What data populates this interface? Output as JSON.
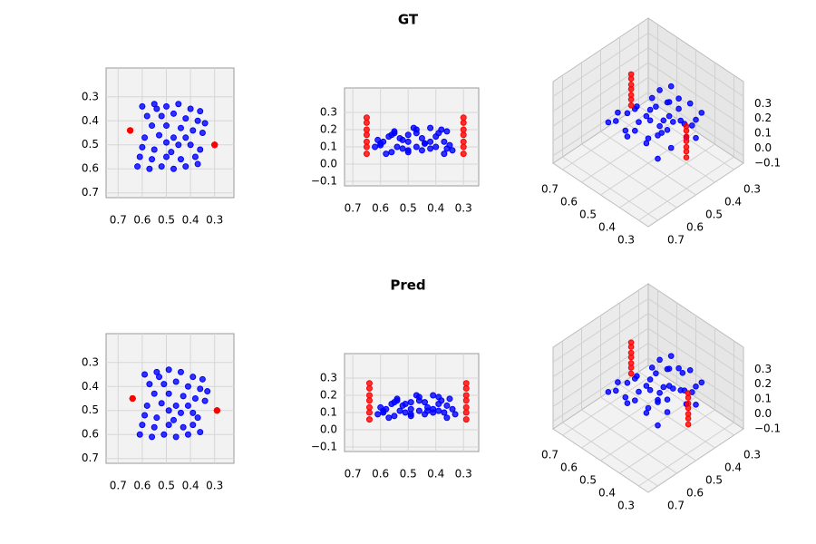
{
  "chart_data": [
    {
      "type": "scatter3d",
      "title": "GT",
      "xticks": [
        0.7,
        0.6,
        0.5,
        0.4,
        0.3
      ],
      "yticks": [
        0.3,
        0.4,
        0.5,
        0.6,
        0.7
      ],
      "zticks": [
        {
          "value": -0.1,
          "label": "−0.1"
        },
        {
          "value": 0,
          "label": "0.0"
        },
        0.1,
        0.2,
        0.3
      ],
      "views": [
        {
          "type": "top",
          "xlim": [
            0.75,
            0.22
          ],
          "ylim": [
            0.18,
            0.72
          ]
        },
        {
          "type": "front",
          "xlim": [
            0.73,
            0.245
          ],
          "zlim": [
            -0.126,
            0.442
          ]
        },
        {
          "type": "iso",
          "xlim": [
            0.25,
            0.75
          ],
          "ylim": [
            0.25,
            0.75
          ],
          "zlim": [
            -0.15,
            0.4
          ]
        }
      ],
      "series": [
        {
          "color": "#0000ff",
          "x": [
            0.6,
            0.55,
            0.5,
            0.45,
            0.4,
            0.36,
            0.58,
            0.52,
            0.47,
            0.42,
            0.37,
            0.56,
            0.5,
            0.44,
            0.39,
            0.35,
            0.53,
            0.47,
            0.42,
            0.5,
            0.45,
            0.4,
            0.6,
            0.55,
            0.36,
            0.61,
            0.56,
            0.5,
            0.44,
            0.38,
            0.62,
            0.57,
            0.52,
            0.47,
            0.42,
            0.37,
            0.59,
            0.34,
            0.48,
            0.54
          ],
          "y": [
            0.34,
            0.33,
            0.34,
            0.33,
            0.35,
            0.36,
            0.38,
            0.38,
            0.37,
            0.39,
            0.4,
            0.42,
            0.42,
            0.43,
            0.44,
            0.45,
            0.46,
            0.47,
            0.47,
            0.49,
            0.5,
            0.5,
            0.51,
            0.52,
            0.52,
            0.55,
            0.56,
            0.55,
            0.56,
            0.55,
            0.59,
            0.6,
            0.59,
            0.6,
            0.59,
            0.58,
            0.47,
            0.41,
            0.53,
            0.35
          ],
          "z": [
            0.12,
            0.18,
            0.08,
            0.15,
            0.1,
            0.19,
            0.06,
            0.14,
            0.2,
            0.09,
            0.13,
            0.17,
            0.07,
            0.12,
            0.18,
            0.11,
            0.15,
            0.1,
            0.21,
            0.13,
            0.08,
            0.16,
            0.11,
            0.19,
            0.09,
            0.14,
            0.07,
            0.17,
            0.12,
            0.2,
            0.1,
            0.16,
            0.09,
            0.18,
            0.13,
            0.06,
            0.13,
            0.08,
            0.21,
            0.1
          ]
        },
        {
          "color": "#ff0000",
          "x": [
            0.65,
            0.65,
            0.65,
            0.65,
            0.65,
            0.65,
            0.65,
            0.3,
            0.3,
            0.3,
            0.3,
            0.3,
            0.3,
            0.3
          ],
          "y": [
            0.44,
            0.44,
            0.44,
            0.44,
            0.44,
            0.44,
            0.44,
            0.5,
            0.5,
            0.5,
            0.5,
            0.5,
            0.5,
            0.5
          ],
          "z": [
            0.06,
            0.1,
            0.13,
            0.17,
            0.2,
            0.24,
            0.27,
            0.06,
            0.1,
            0.13,
            0.17,
            0.2,
            0.24,
            0.27
          ]
        }
      ]
    },
    {
      "type": "scatter3d",
      "title": "Pred",
      "xticks": [
        0.7,
        0.6,
        0.5,
        0.4,
        0.3
      ],
      "yticks": [
        0.3,
        0.4,
        0.5,
        0.6,
        0.7
      ],
      "zticks": [
        {
          "value": -0.1,
          "label": "−0.1"
        },
        {
          "value": 0,
          "label": "0.0"
        },
        0.1,
        0.2,
        0.3
      ],
      "views": [
        {
          "type": "top",
          "xlim": [
            0.75,
            0.22
          ],
          "ylim": [
            0.18,
            0.72
          ]
        },
        {
          "type": "front",
          "xlim": [
            0.73,
            0.245
          ],
          "zlim": [
            -0.126,
            0.442
          ]
        },
        {
          "type": "iso",
          "xlim": [
            0.25,
            0.75
          ],
          "ylim": [
            0.25,
            0.75
          ],
          "zlim": [
            -0.15,
            0.4
          ]
        }
      ],
      "series": [
        {
          "color": "#0000ff",
          "x": [
            0.59,
            0.54,
            0.49,
            0.44,
            0.39,
            0.35,
            0.57,
            0.51,
            0.46,
            0.41,
            0.36,
            0.55,
            0.49,
            0.43,
            0.38,
            0.34,
            0.52,
            0.46,
            0.41,
            0.49,
            0.44,
            0.39,
            0.59,
            0.54,
            0.37,
            0.6,
            0.55,
            0.49,
            0.43,
            0.39,
            0.61,
            0.56,
            0.51,
            0.46,
            0.41,
            0.36,
            0.58,
            0.33,
            0.47,
            0.53
          ],
          "y": [
            0.35,
            0.34,
            0.33,
            0.34,
            0.36,
            0.37,
            0.39,
            0.39,
            0.38,
            0.4,
            0.41,
            0.43,
            0.43,
            0.44,
            0.45,
            0.46,
            0.47,
            0.48,
            0.48,
            0.5,
            0.51,
            0.51,
            0.52,
            0.53,
            0.53,
            0.56,
            0.57,
            0.56,
            0.57,
            0.56,
            0.6,
            0.61,
            0.6,
            0.61,
            0.6,
            0.59,
            0.48,
            0.42,
            0.54,
            0.36
          ],
          "z": [
            0.11,
            0.17,
            0.09,
            0.16,
            0.11,
            0.18,
            0.07,
            0.15,
            0.19,
            0.1,
            0.14,
            0.16,
            0.08,
            0.13,
            0.17,
            0.12,
            0.14,
            0.11,
            0.2,
            0.12,
            0.09,
            0.15,
            0.1,
            0.18,
            0.1,
            0.13,
            0.08,
            0.16,
            0.11,
            0.19,
            0.09,
            0.15,
            0.1,
            0.17,
            0.12,
            0.07,
            0.12,
            0.09,
            0.2,
            0.11
          ]
        },
        {
          "color": "#ff0000",
          "x": [
            0.64,
            0.64,
            0.64,
            0.64,
            0.64,
            0.64,
            0.64,
            0.29,
            0.29,
            0.29,
            0.29,
            0.29,
            0.29,
            0.29
          ],
          "y": [
            0.45,
            0.45,
            0.45,
            0.45,
            0.45,
            0.45,
            0.45,
            0.5,
            0.5,
            0.5,
            0.5,
            0.5,
            0.5,
            0.5
          ],
          "z": [
            0.06,
            0.1,
            0.13,
            0.17,
            0.2,
            0.24,
            0.27,
            0.06,
            0.1,
            0.13,
            0.17,
            0.2,
            0.24,
            0.27
          ]
        }
      ]
    }
  ]
}
